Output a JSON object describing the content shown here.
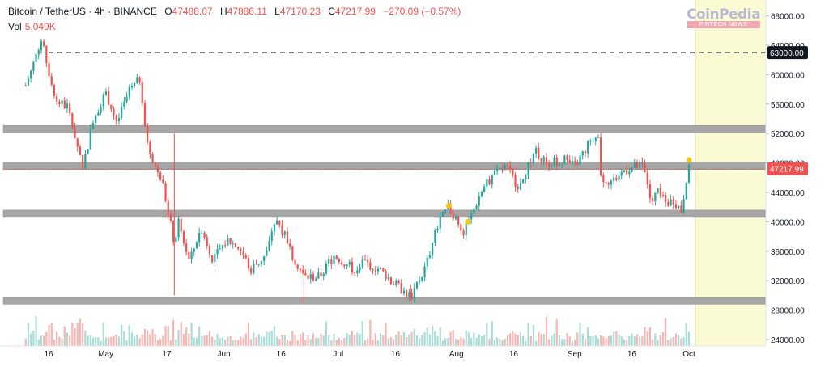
{
  "header": {
    "symbol": "Bitcoin / TetherUS · 4h · BINANCE",
    "o_label": "O",
    "o": "47488.07",
    "h_label": "H",
    "h": "47886.11",
    "l_label": "L",
    "l": "47170.23",
    "c_label": "C",
    "c": "47217.99",
    "change": "−270.09 (−0.57%)"
  },
  "volume": {
    "label": "Vol",
    "value": "5.049K"
  },
  "logo": {
    "main": "CoinPedia",
    "sub": "FINTECH NEWS"
  },
  "colors": {
    "up": "#26a69a",
    "down": "#ef5350",
    "zone": "#a6a6a6",
    "future": "#fbfbd3",
    "line": "#131722"
  },
  "chart_data": {
    "type": "candlestick",
    "y_axis_ticks": [
      24000,
      28000,
      32000,
      36000,
      40000,
      44000,
      48000,
      52000,
      56000,
      60000,
      64000,
      68000
    ],
    "y_axis_labels": [
      "24000.00",
      "28000.00",
      "32000.00",
      "36000.00",
      "40000.00",
      "44000.00",
      "48000.00",
      "52000.00",
      "56000.00",
      "60000.00",
      "64000.00",
      "68000.00"
    ],
    "x_axis_labels": [
      "16",
      "May",
      "17",
      "Jun",
      "16",
      "Jul",
      "16",
      "Aug",
      "16",
      "Sep",
      "16",
      "Oct"
    ],
    "ylim": [
      23500,
      70000
    ],
    "last_price": 47217.99,
    "last_price_label": "47217.99",
    "dashed_level": 63000,
    "dashed_level_label": "63000.00",
    "zones": [
      {
        "low": 52100,
        "high": 53100
      },
      {
        "low": 47100,
        "high": 48100
      },
      {
        "low": 40600,
        "high": 41600
      },
      {
        "low": 28800,
        "high": 29700
      }
    ],
    "markers": [
      {
        "date": "2021-07-30",
        "price": 42200
      },
      {
        "date": "2021-08-04",
        "price": 40000
      },
      {
        "date": "2021-10-01",
        "price": 48400
      }
    ],
    "price_path": [
      [
        "2021-04-10",
        58500
      ],
      [
        "2021-04-14",
        64800
      ],
      [
        "2021-04-18",
        56500
      ],
      [
        "2021-04-21",
        55500
      ],
      [
        "2021-04-25",
        47500
      ],
      [
        "2021-04-28",
        54500
      ],
      [
        "2021-05-01",
        57500
      ],
      [
        "2021-05-04",
        53500
      ],
      [
        "2021-05-07",
        57500
      ],
      [
        "2021-05-10",
        59500
      ],
      [
        "2021-05-12",
        50000
      ],
      [
        "2021-05-13",
        49000
      ],
      [
        "2021-05-16",
        45000
      ],
      [
        "2021-05-19",
        37000
      ],
      [
        "2021-05-20",
        40000
      ],
      [
        "2021-05-23",
        34500
      ],
      [
        "2021-05-26",
        39500
      ],
      [
        "2021-05-29",
        35000
      ],
      [
        "2021-06-02",
        37500
      ],
      [
        "2021-06-05",
        36500
      ],
      [
        "2021-06-08",
        33500
      ],
      [
        "2021-06-12",
        35500
      ],
      [
        "2021-06-15",
        40500
      ],
      [
        "2021-06-19",
        35500
      ],
      [
        "2021-06-22",
        32500
      ],
      [
        "2021-06-26",
        32500
      ],
      [
        "2021-06-30",
        35500
      ],
      [
        "2021-07-05",
        33500
      ],
      [
        "2021-07-08",
        34500
      ],
      [
        "2021-07-12",
        33500
      ],
      [
        "2021-07-16",
        31500
      ],
      [
        "2021-07-20",
        29800
      ],
      [
        "2021-07-24",
        34000
      ],
      [
        "2021-07-27",
        39500
      ],
      [
        "2021-07-30",
        42000
      ],
      [
        "2021-08-03",
        38500
      ],
      [
        "2021-08-07",
        43500
      ],
      [
        "2021-08-10",
        46000
      ],
      [
        "2021-08-14",
        47500
      ],
      [
        "2021-08-17",
        45000
      ],
      [
        "2021-08-22",
        49500
      ],
      [
        "2021-08-25",
        48000
      ],
      [
        "2021-08-29",
        48500
      ],
      [
        "2021-09-01",
        47500
      ],
      [
        "2021-09-04",
        50000
      ],
      [
        "2021-09-07",
        52500
      ],
      [
        "2021-09-08",
        46000
      ],
      [
        "2021-09-11",
        45500
      ],
      [
        "2021-09-14",
        47000
      ],
      [
        "2021-09-17",
        47500
      ],
      [
        "2021-09-19",
        47500
      ],
      [
        "2021-09-21",
        42500
      ],
      [
        "2021-09-23",
        44500
      ],
      [
        "2021-09-25",
        42500
      ],
      [
        "2021-09-27",
        43000
      ],
      [
        "2021-09-29",
        41500
      ],
      [
        "2021-10-01",
        48000
      ]
    ]
  }
}
